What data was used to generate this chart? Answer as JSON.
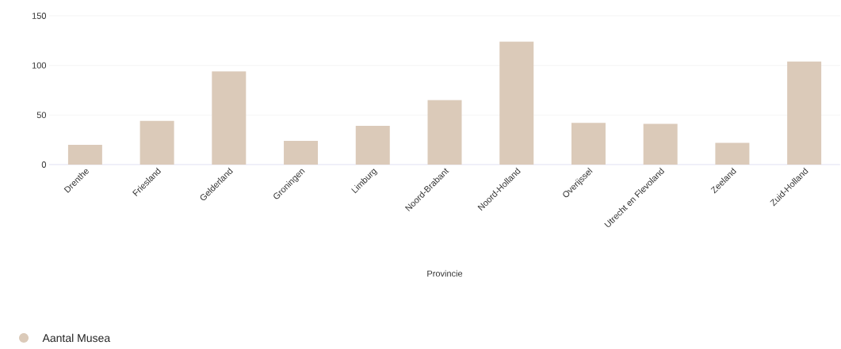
{
  "chart_data": {
    "type": "bar",
    "xlabel": "Provincie",
    "categories": [
      "Drenthe",
      "Friesland",
      "Gelderland",
      "Groningen",
      "Limburg",
      "Noord-Brabant",
      "Noord-Holland",
      "Overijssel",
      "Utrecht en Flevoland",
      "Zeeland",
      "Zuid-Holland"
    ],
    "series": [
      {
        "name": "Aantal Musea",
        "color": "#dbcab9",
        "values": [
          20,
          44,
          94,
          24,
          39,
          65,
          124,
          42,
          41,
          22,
          104
        ]
      }
    ],
    "ylim": [
      0,
      150
    ],
    "yticks": [
      0,
      50,
      100,
      150
    ],
    "grid": "y",
    "legend": "bottom left"
  }
}
